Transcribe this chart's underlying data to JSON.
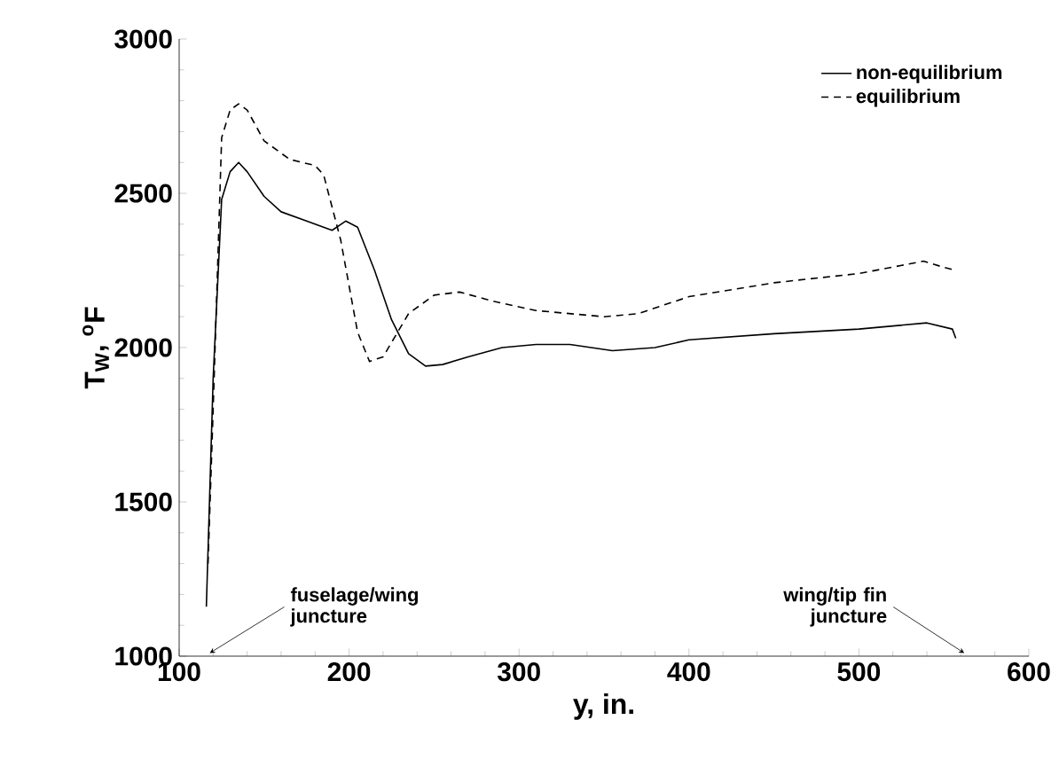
{
  "chart_data": {
    "type": "line",
    "xlabel": "y, in.",
    "ylabel": "T$_{W}$, $^{o}$F",
    "xlim": [
      100,
      600
    ],
    "xticks": [
      100,
      200,
      300,
      400,
      500,
      600
    ],
    "ylim": [
      1000,
      3000
    ],
    "yticks": [
      1000,
      1500,
      2000,
      2500,
      3000
    ],
    "legend": "top right",
    "grid": false,
    "series": [
      {
        "name": "non-equilibrium",
        "color": "#000000",
        "line_style": "solid",
        "x": [
          116,
          120,
          125,
          130,
          135,
          140,
          150,
          160,
          175,
          190,
          198,
          205,
          215,
          225,
          235,
          245,
          255,
          270,
          290,
          310,
          330,
          355,
          380,
          400,
          450,
          500,
          540,
          555,
          557
        ],
        "values": [
          1160,
          1900,
          2480,
          2570,
          2600,
          2570,
          2490,
          2440,
          2410,
          2380,
          2410,
          2390,
          2250,
          2090,
          1980,
          1940,
          1945,
          1970,
          2000,
          2010,
          2010,
          1990,
          2000,
          2025,
          2045,
          2060,
          2080,
          2060,
          2030
        ]
      },
      {
        "name": "equilibrium",
        "color": "#000000",
        "line_style": "dashed",
        "x": [
          117,
          120,
          125,
          130,
          135,
          140,
          150,
          165,
          180,
          185,
          195,
          205,
          212,
          220,
          235,
          250,
          265,
          285,
          310,
          350,
          370,
          400,
          450,
          500,
          538,
          550,
          557
        ],
        "values": [
          1300,
          1800,
          2680,
          2770,
          2790,
          2770,
          2670,
          2610,
          2590,
          2560,
          2350,
          2050,
          1955,
          1970,
          2110,
          2170,
          2180,
          2150,
          2120,
          2100,
          2110,
          2165,
          2210,
          2240,
          2280,
          2260,
          2250
        ]
      }
    ],
    "annotations": [
      {
        "text": "fuselage/wing juncture",
        "x": 118,
        "y": 1010
      },
      {
        "text": "wing/tip fin juncture",
        "x": 562,
        "y": 1010
      }
    ]
  }
}
